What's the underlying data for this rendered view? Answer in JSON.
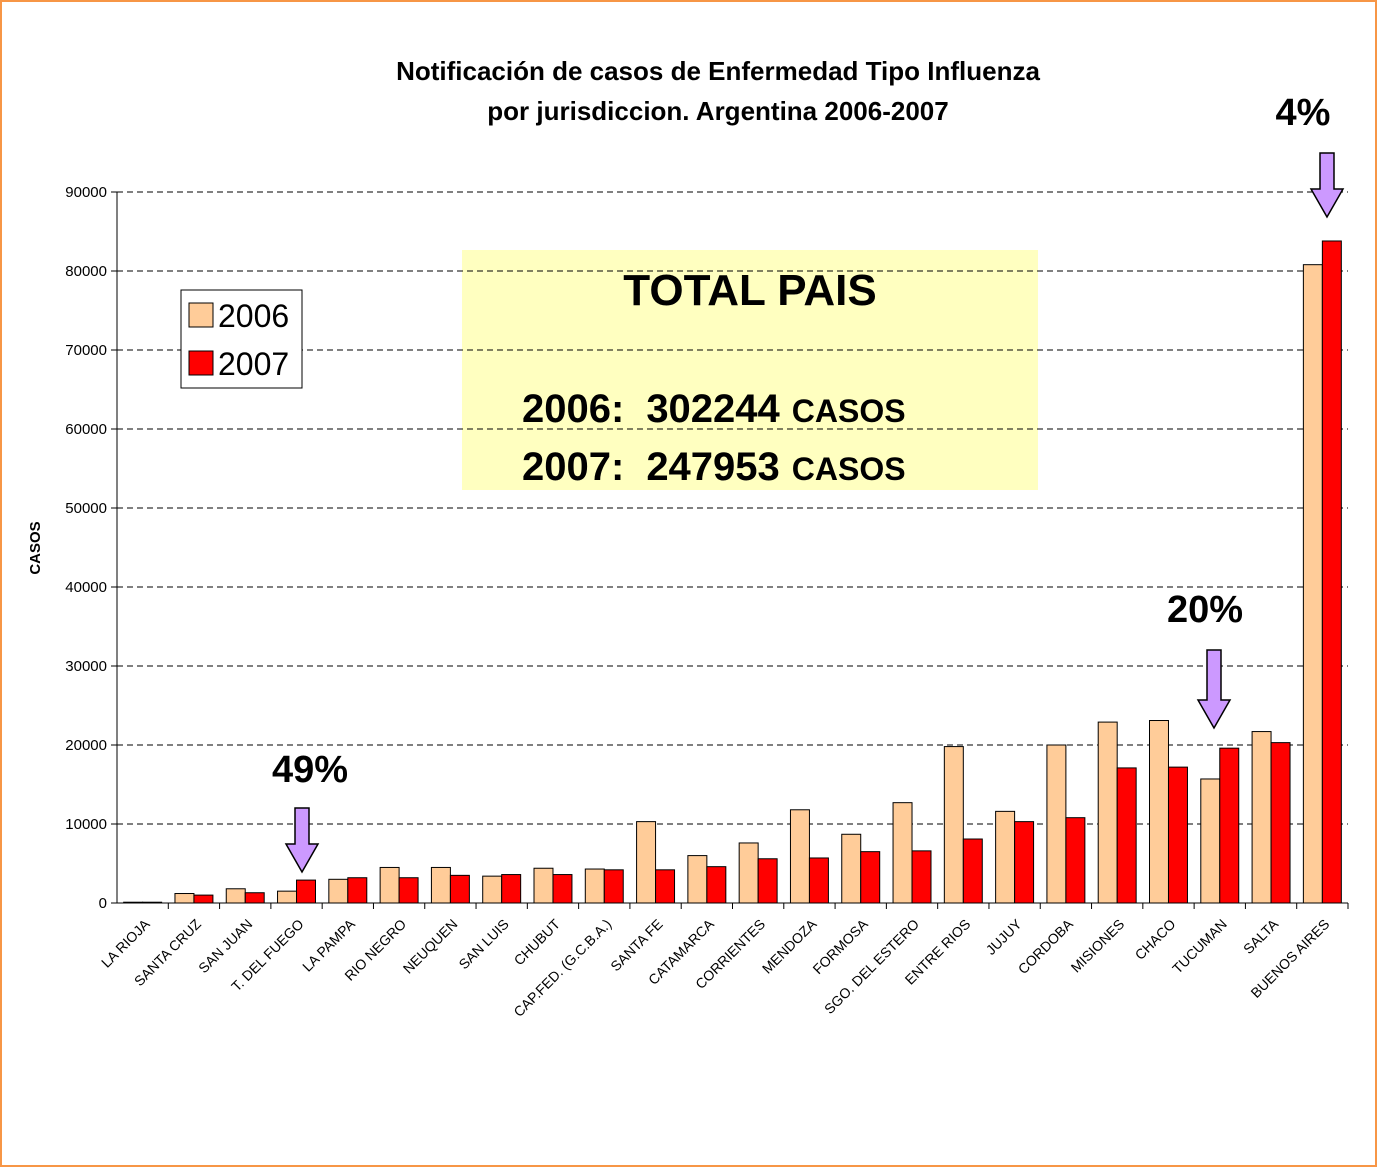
{
  "chart_data": {
    "type": "bar",
    "title": [
      "Notificación de casos de Enfermedad Tipo Influenza",
      "por jurisdiccion. Argentina 2006-2007"
    ],
    "y_label": "CASOS",
    "categories": [
      "LA RIOJA",
      "SANTA CRUZ",
      "SAN JUAN",
      "T. DEL FUEGO",
      "LA PAMPA",
      "RIO NEGRO",
      "NEUQUEN",
      "SAN LUIS",
      "CHUBUT",
      "CAP.FED. (G.C.B.A.)",
      "SANTA FE",
      "CATAMARCA",
      "CORRIENTES",
      "MENDOZA",
      "FORMOSA",
      "SGO. DEL ESTERO",
      "ENTRE RIOS",
      "JUJUY",
      "CORDOBA",
      "MISIONES",
      "CHACO",
      "TUCUMAN",
      "SALTA",
      "BUENOS AIRES"
    ],
    "series": [
      {
        "name": "2006",
        "color": "#FFCC99",
        "values": [
          100,
          1200,
          1800,
          1500,
          3000,
          4500,
          4500,
          3400,
          4400,
          4300,
          10300,
          6000,
          7600,
          11800,
          8700,
          12700,
          19800,
          11600,
          20000,
          22900,
          23100,
          15700,
          21700,
          80800
        ]
      },
      {
        "name": "2007",
        "color": "#FF0000",
        "values": [
          100,
          1000,
          1300,
          2900,
          3200,
          3200,
          3500,
          3600,
          3600,
          4200,
          4200,
          4600,
          5600,
          5700,
          6500,
          6600,
          8100,
          10300,
          10800,
          17100,
          17200,
          19600,
          20300,
          83800
        ]
      }
    ],
    "ylim": [
      0,
      90000
    ],
    "yticks": [
      0,
      10000,
      20000,
      30000,
      40000,
      50000,
      60000,
      70000,
      80000,
      90000
    ],
    "grid": true,
    "legend": "left",
    "annotations": [
      "49%",
      "20%",
      "4%"
    ],
    "totals_box": {
      "title": "TOTAL PAIS",
      "lines": [
        {
          "label": "2006:",
          "value": 302244,
          "unit": "CASOS"
        },
        {
          "label": "2007:",
          "value": 247953,
          "unit": "CASOS"
        }
      ]
    }
  }
}
